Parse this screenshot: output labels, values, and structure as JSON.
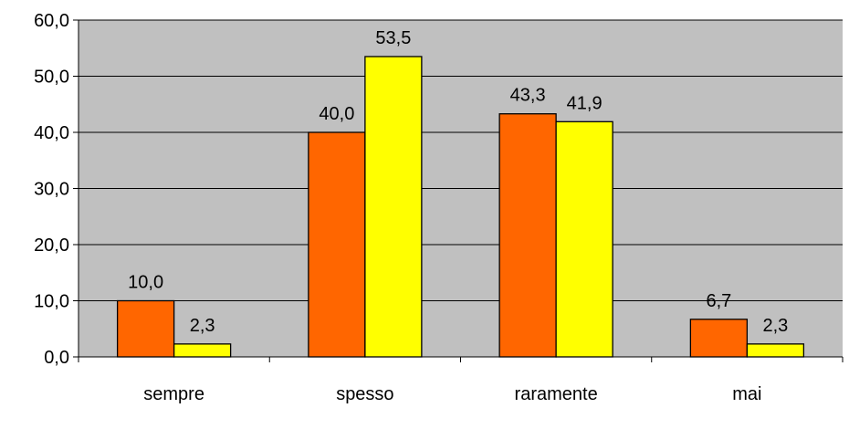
{
  "chart_data": {
    "type": "bar",
    "categories": [
      "sempre",
      "spesso",
      "raramente",
      "mai"
    ],
    "series": [
      {
        "values": [
          10.0,
          40.0,
          43.3,
          6.7
        ],
        "labels": [
          "10,0",
          "40,0",
          "43,3",
          "6,7"
        ],
        "color": "#ff6600"
      },
      {
        "values": [
          2.3,
          53.5,
          41.9,
          2.3
        ],
        "labels": [
          "2,3",
          "53,5",
          "41,9",
          "2,3"
        ],
        "color": "#ffff00"
      }
    ],
    "ylim": [
      0,
      60
    ],
    "yticks": [
      0,
      10,
      20,
      30,
      40,
      50,
      60
    ],
    "ytick_labels": [
      "0,0",
      "10,0",
      "20,0",
      "30,0",
      "40,0",
      "50,0",
      "60,0"
    ],
    "grid": true,
    "plot_background": "#c0c0c0",
    "legend": "none"
  }
}
